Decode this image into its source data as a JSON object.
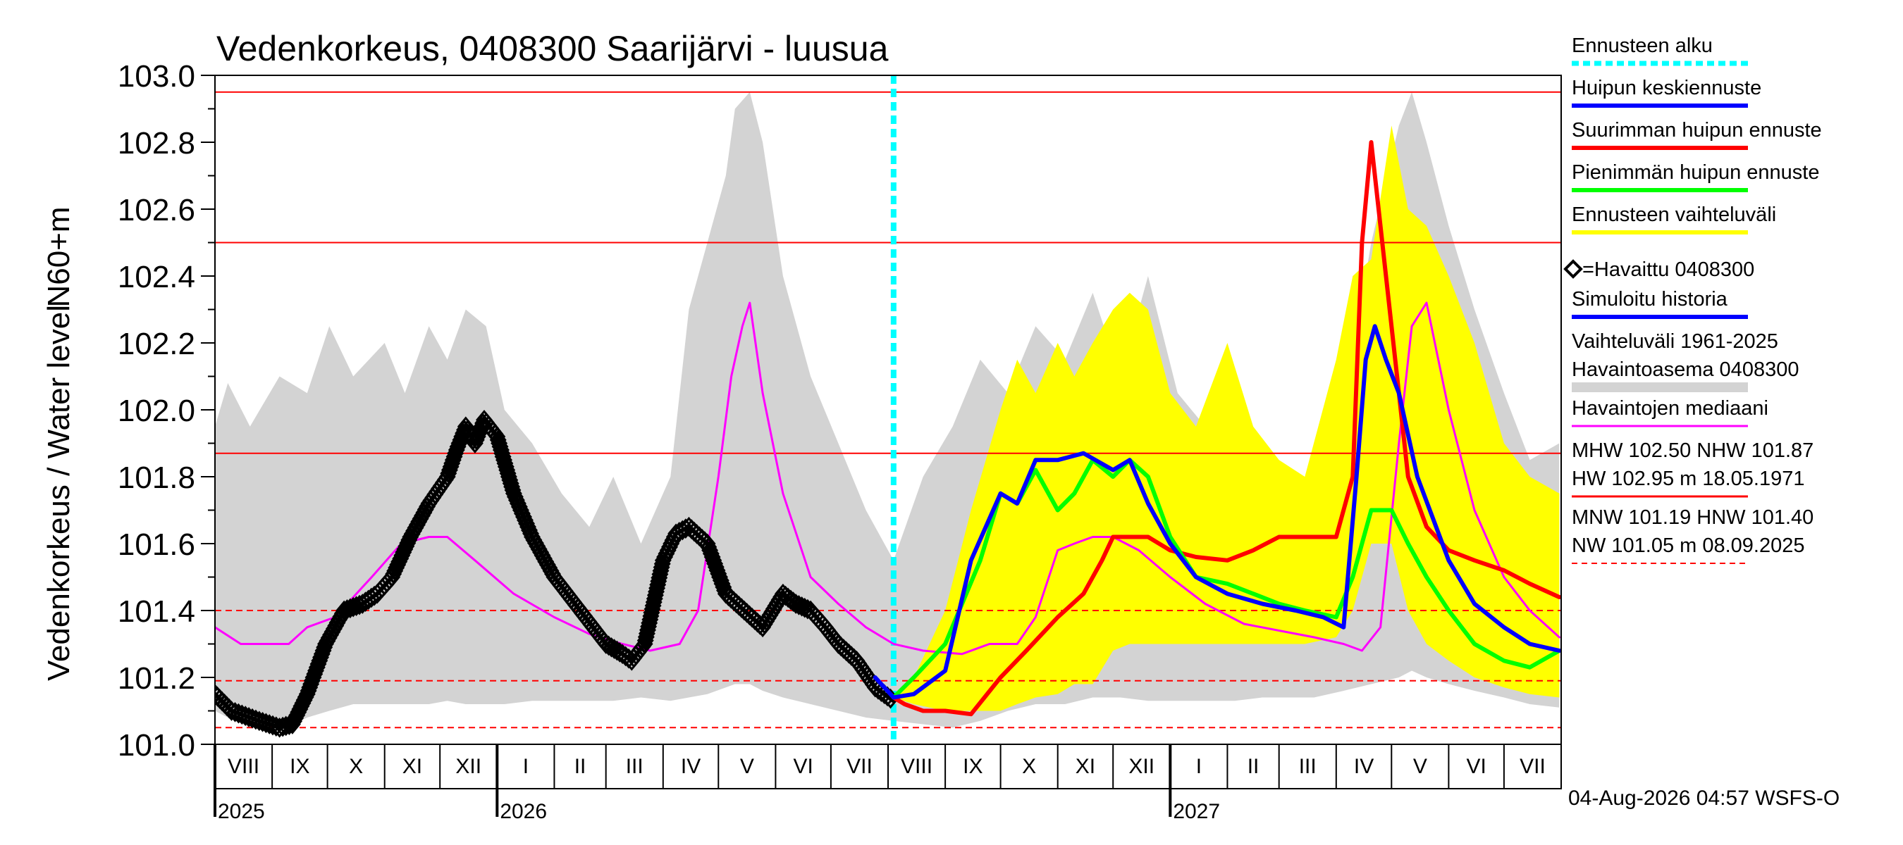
{
  "chart_data": {
    "type": "line",
    "title": "Vedenkorkeus, 0408300 Saarijärvi - luusua",
    "ylabel_top": "N60+m",
    "ylabel": "Vedenkorkeus / Water level",
    "ylim": [
      101.0,
      103.0
    ],
    "yticks": [
      "101.0",
      "101.2",
      "101.4",
      "101.6",
      "101.8",
      "102.0",
      "102.2",
      "102.4",
      "102.6",
      "102.8",
      "103.0"
    ],
    "x_range": [
      "2025-08-01",
      "2027-07-31"
    ],
    "months": [
      {
        "label": "VIII",
        "start": "2025-08-01"
      },
      {
        "label": "IX",
        "start": "2025-09-01"
      },
      {
        "label": "X",
        "start": "2025-10-01"
      },
      {
        "label": "XI",
        "start": "2025-11-01"
      },
      {
        "label": "XII",
        "start": "2025-12-01"
      },
      {
        "label": "I",
        "start": "2026-01-01"
      },
      {
        "label": "II",
        "start": "2026-02-01"
      },
      {
        "label": "III",
        "start": "2026-03-01"
      },
      {
        "label": "IV",
        "start": "2026-04-01"
      },
      {
        "label": "V",
        "start": "2026-05-01"
      },
      {
        "label": "VI",
        "start": "2026-06-01"
      },
      {
        "label": "VII",
        "start": "2026-07-01"
      },
      {
        "label": "VIII",
        "start": "2026-08-01"
      },
      {
        "label": "IX",
        "start": "2026-09-01"
      },
      {
        "label": "X",
        "start": "2026-10-01"
      },
      {
        "label": "XI",
        "start": "2026-11-01"
      },
      {
        "label": "XII",
        "start": "2026-12-01"
      },
      {
        "label": "I",
        "start": "2027-01-01"
      },
      {
        "label": "II",
        "start": "2027-02-01"
      },
      {
        "label": "III",
        "start": "2027-03-01"
      },
      {
        "label": "IV",
        "start": "2027-04-01"
      },
      {
        "label": "V",
        "start": "2027-05-01"
      },
      {
        "label": "VI",
        "start": "2027-06-01"
      },
      {
        "label": "VII",
        "start": "2027-07-01"
      }
    ],
    "years": [
      {
        "label": "2025",
        "start": "2025-08-01"
      },
      {
        "label": "2026",
        "start": "2026-01-01"
      },
      {
        "label": "2027",
        "start": "2027-01-01"
      }
    ],
    "forecast_start": "2026-08-04",
    "reference_lines": [
      {
        "name": "HW",
        "value": 102.95,
        "style": "solid"
      },
      {
        "name": "MHW",
        "value": 102.5,
        "style": "solid"
      },
      {
        "name": "NHW",
        "value": 101.87,
        "style": "solid"
      },
      {
        "name": "HNW",
        "value": 101.4,
        "style": "dashed"
      },
      {
        "name": "MNW",
        "value": 101.19,
        "style": "dashed"
      },
      {
        "name": "NW",
        "value": 101.05,
        "style": "dashed"
      }
    ],
    "series": [
      {
        "name": "Vaihteluväli 1961-2025 Havaintoasema 0408300",
        "type": "band",
        "color": "#d3d3d3",
        "x": [
          "2025-08-01",
          "2025-08-08",
          "2025-08-20",
          "2025-09-05",
          "2025-09-20",
          "2025-10-02",
          "2025-10-15",
          "2025-11-01",
          "2025-11-12",
          "2025-11-25",
          "2025-12-05",
          "2025-12-15",
          "2025-12-26",
          "2026-01-05",
          "2026-01-20",
          "2026-02-05",
          "2026-02-20",
          "2026-03-05",
          "2026-03-20",
          "2026-04-05",
          "2026-04-15",
          "2026-04-25",
          "2026-05-05",
          "2026-05-10",
          "2026-05-18",
          "2026-05-25",
          "2026-06-05",
          "2026-06-20",
          "2026-07-05",
          "2026-07-20",
          "2026-08-04",
          "2026-08-20",
          "2026-09-05",
          "2026-09-20",
          "2026-10-05",
          "2026-10-20",
          "2026-11-05",
          "2026-11-20",
          "2026-12-05",
          "2026-12-20",
          "2027-01-05",
          "2027-01-20",
          "2027-02-05",
          "2027-02-20",
          "2027-03-05",
          "2027-03-20",
          "2027-04-05",
          "2027-04-20",
          "2027-05-05",
          "2027-05-12",
          "2027-05-20",
          "2027-06-01",
          "2027-06-15",
          "2027-07-01",
          "2027-07-15",
          "2027-07-31"
        ],
        "upper": [
          101.95,
          102.08,
          101.95,
          102.1,
          102.05,
          102.25,
          102.1,
          102.2,
          102.05,
          102.25,
          102.15,
          102.3,
          102.25,
          102.0,
          101.9,
          101.75,
          101.65,
          101.8,
          101.6,
          101.8,
          102.3,
          102.5,
          102.7,
          102.9,
          102.95,
          102.8,
          102.4,
          102.1,
          101.9,
          101.7,
          101.55,
          101.8,
          101.95,
          102.15,
          102.05,
          102.25,
          102.15,
          102.35,
          102.1,
          102.4,
          102.05,
          101.95,
          101.8,
          101.75,
          101.8,
          101.75,
          102.0,
          102.5,
          102.85,
          102.95,
          102.8,
          102.55,
          102.3,
          102.05,
          101.85,
          101.9
        ],
        "lower": [
          101.1,
          101.08,
          101.05,
          101.04,
          101.08,
          101.1,
          101.12,
          101.12,
          101.12,
          101.12,
          101.13,
          101.12,
          101.12,
          101.12,
          101.13,
          101.13,
          101.13,
          101.13,
          101.14,
          101.13,
          101.14,
          101.15,
          101.17,
          101.18,
          101.18,
          101.16,
          101.14,
          101.12,
          101.1,
          101.08,
          101.07,
          101.06,
          101.05,
          101.07,
          101.1,
          101.12,
          101.12,
          101.14,
          101.14,
          101.13,
          101.13,
          101.13,
          101.13,
          101.14,
          101.14,
          101.14,
          101.16,
          101.18,
          101.2,
          101.22,
          101.2,
          101.18,
          101.16,
          101.14,
          101.12,
          101.11
        ]
      },
      {
        "name": "Ennusteen vaihteluväli",
        "type": "band",
        "color": "#ffff00",
        "x": [
          "2026-08-04",
          "2026-08-15",
          "2026-09-01",
          "2026-09-15",
          "2026-10-01",
          "2026-10-10",
          "2026-10-20",
          "2026-11-01",
          "2026-11-10",
          "2026-11-20",
          "2026-12-01",
          "2026-12-10",
          "2026-12-20",
          "2027-01-01",
          "2027-01-15",
          "2027-02-01",
          "2027-02-15",
          "2027-03-01",
          "2027-03-15",
          "2027-04-01",
          "2027-04-10",
          "2027-04-20",
          "2027-05-01",
          "2027-05-10",
          "2027-05-20",
          "2027-06-01",
          "2027-06-15",
          "2027-07-01",
          "2027-07-15",
          "2027-07-31"
        ],
        "upper": [
          101.14,
          101.2,
          101.4,
          101.7,
          102.0,
          102.15,
          102.05,
          102.2,
          102.1,
          102.2,
          102.3,
          102.35,
          102.3,
          102.05,
          101.95,
          102.2,
          101.95,
          101.85,
          101.8,
          102.15,
          102.4,
          102.45,
          102.85,
          102.6,
          102.55,
          102.4,
          102.2,
          101.9,
          101.8,
          101.75
        ],
        "lower": [
          101.14,
          101.12,
          101.1,
          101.1,
          101.1,
          101.12,
          101.14,
          101.15,
          101.18,
          101.18,
          101.28,
          101.3,
          101.3,
          101.3,
          101.3,
          101.3,
          101.3,
          101.3,
          101.3,
          101.32,
          101.4,
          101.6,
          101.6,
          101.4,
          101.3,
          101.25,
          101.2,
          101.17,
          101.15,
          101.14
        ]
      },
      {
        "name": "Havaintojen mediaani",
        "color": "#ff00ff",
        "x": [
          "2025-08-01",
          "2025-08-15",
          "2025-09-10",
          "2025-09-20",
          "2025-10-05",
          "2025-10-25",
          "2025-11-10",
          "2025-11-25",
          "2025-12-05",
          "2025-12-20",
          "2026-01-10",
          "2026-02-01",
          "2026-02-20",
          "2026-03-10",
          "2026-03-25",
          "2026-04-10",
          "2026-04-20",
          "2026-05-01",
          "2026-05-08",
          "2026-05-14",
          "2026-05-18",
          "2026-05-25",
          "2026-06-05",
          "2026-06-20",
          "2026-07-05",
          "2026-07-20",
          "2026-08-04",
          "2026-08-20",
          "2026-09-10",
          "2026-09-25",
          "2026-10-10",
          "2026-10-20",
          "2026-11-01",
          "2026-11-10",
          "2026-11-20",
          "2026-12-01",
          "2026-12-15",
          "2027-01-01",
          "2027-01-20",
          "2027-02-10",
          "2027-03-01",
          "2027-03-20",
          "2027-04-05",
          "2027-04-15",
          "2027-04-25",
          "2027-05-05",
          "2027-05-12",
          "2027-05-20",
          "2027-06-01",
          "2027-06-15",
          "2027-07-01",
          "2027-07-15",
          "2027-07-31"
        ],
        "y": [
          101.35,
          101.3,
          101.3,
          101.35,
          101.38,
          101.5,
          101.6,
          101.62,
          101.62,
          101.55,
          101.45,
          101.38,
          101.33,
          101.3,
          101.28,
          101.3,
          101.4,
          101.8,
          102.1,
          102.25,
          102.32,
          102.05,
          101.75,
          101.5,
          101.42,
          101.35,
          101.3,
          101.28,
          101.27,
          101.3,
          101.3,
          101.38,
          101.58,
          101.6,
          101.62,
          101.62,
          101.58,
          101.5,
          101.42,
          101.36,
          101.34,
          101.32,
          101.3,
          101.28,
          101.35,
          101.9,
          102.25,
          102.32,
          102.0,
          101.7,
          101.5,
          101.4,
          101.32
        ]
      },
      {
        "name": "Havaittu 0408300",
        "color": "#000000",
        "x": [
          "2025-08-01",
          "2025-08-10",
          "2025-08-25",
          "2025-09-05",
          "2025-09-12",
          "2025-09-20",
          "2025-09-30",
          "2025-10-10",
          "2025-10-20",
          "2025-10-28",
          "2025-11-05",
          "2025-11-15",
          "2025-11-25",
          "2025-12-05",
          "2025-12-10",
          "2025-12-15",
          "2025-12-20",
          "2025-12-25",
          "2026-01-01",
          "2026-01-10",
          "2026-01-20",
          "2026-02-01",
          "2026-02-15",
          "2026-03-01",
          "2026-03-10",
          "2026-03-15",
          "2026-03-22",
          "2026-04-01",
          "2026-04-08",
          "2026-04-15",
          "2026-04-25",
          "2026-05-05",
          "2026-05-15",
          "2026-05-25",
          "2026-06-05",
          "2026-06-12",
          "2026-06-20",
          "2026-06-28",
          "2026-07-05",
          "2026-07-15",
          "2026-07-25",
          "2026-08-04"
        ],
        "y": [
          101.15,
          101.1,
          101.07,
          101.05,
          101.06,
          101.15,
          101.3,
          101.4,
          101.42,
          101.45,
          101.5,
          101.62,
          101.72,
          101.8,
          101.88,
          101.95,
          101.9,
          101.97,
          101.92,
          101.75,
          101.62,
          101.5,
          101.4,
          101.3,
          101.27,
          101.25,
          101.3,
          101.55,
          101.63,
          101.65,
          101.6,
          101.45,
          101.4,
          101.35,
          101.45,
          101.42,
          101.4,
          101.35,
          101.3,
          101.25,
          101.17,
          101.13
        ]
      },
      {
        "name": "Suurimman huipun ennuste",
        "color": "#ff0000",
        "x": [
          "2026-08-04",
          "2026-08-10",
          "2026-08-20",
          "2026-09-01",
          "2026-09-15",
          "2026-10-01",
          "2026-10-15",
          "2026-11-01",
          "2026-11-15",
          "2026-11-25",
          "2026-12-01",
          "2026-12-10",
          "2026-12-20",
          "2027-01-01",
          "2027-01-15",
          "2027-02-01",
          "2027-02-15",
          "2027-03-01",
          "2027-03-15",
          "2027-04-01",
          "2027-04-10",
          "2027-04-15",
          "2027-04-20",
          "2027-04-25",
          "2027-05-01",
          "2027-05-05",
          "2027-05-10",
          "2027-05-20",
          "2027-06-01",
          "2027-06-15",
          "2027-07-01",
          "2027-07-15",
          "2027-07-31"
        ],
        "y": [
          101.14,
          101.12,
          101.1,
          101.1,
          101.09,
          101.2,
          101.28,
          101.38,
          101.45,
          101.55,
          101.62,
          101.62,
          101.62,
          101.58,
          101.56,
          101.55,
          101.58,
          101.62,
          101.62,
          101.62,
          101.8,
          102.5,
          102.8,
          102.55,
          102.25,
          102.05,
          101.8,
          101.65,
          101.58,
          101.55,
          101.52,
          101.48,
          101.44
        ]
      },
      {
        "name": "Pienimmän huipun ennuste",
        "color": "#00ff00",
        "x": [
          "2026-08-04",
          "2026-08-15",
          "2026-09-01",
          "2026-09-20",
          "2026-10-01",
          "2026-10-10",
          "2026-10-20",
          "2026-11-01",
          "2026-11-10",
          "2026-11-20",
          "2026-12-01",
          "2026-12-10",
          "2026-12-20",
          "2027-01-01",
          "2027-01-15",
          "2027-02-01",
          "2027-02-15",
          "2027-03-01",
          "2027-03-15",
          "2027-04-01",
          "2027-04-10",
          "2027-04-20",
          "2027-05-01",
          "2027-05-10",
          "2027-05-20",
          "2027-06-01",
          "2027-06-15",
          "2027-07-01",
          "2027-07-15",
          "2027-07-31"
        ],
        "y": [
          101.14,
          101.2,
          101.3,
          101.55,
          101.75,
          101.72,
          101.82,
          101.7,
          101.75,
          101.85,
          101.8,
          101.85,
          101.8,
          101.62,
          101.5,
          101.48,
          101.45,
          101.42,
          101.4,
          101.38,
          101.5,
          101.7,
          101.7,
          101.6,
          101.5,
          101.4,
          101.3,
          101.25,
          101.23,
          101.28
        ]
      },
      {
        "name": "Huipun keskiennuste",
        "color": "#0000ff",
        "x": [
          "2026-07-25",
          "2026-08-04",
          "2026-08-15",
          "2026-09-01",
          "2026-09-15",
          "2026-10-01",
          "2026-10-10",
          "2026-10-20",
          "2026-11-01",
          "2026-11-15",
          "2026-12-01",
          "2026-12-10",
          "2026-12-20",
          "2027-01-01",
          "2027-01-15",
          "2027-02-01",
          "2027-02-20",
          "2027-03-10",
          "2027-03-25",
          "2027-04-05",
          "2027-04-12",
          "2027-04-17",
          "2027-04-22",
          "2027-04-28",
          "2027-05-05",
          "2027-05-15",
          "2027-06-01",
          "2027-06-15",
          "2027-07-01",
          "2027-07-15",
          "2027-07-31"
        ],
        "y": [
          101.2,
          101.14,
          101.15,
          101.22,
          101.55,
          101.75,
          101.72,
          101.85,
          101.85,
          101.87,
          101.82,
          101.85,
          101.72,
          101.6,
          101.5,
          101.45,
          101.42,
          101.4,
          101.38,
          101.35,
          101.8,
          102.15,
          102.25,
          102.15,
          102.05,
          101.8,
          101.55,
          101.42,
          101.35,
          101.3,
          101.28
        ]
      },
      {
        "name": "Simuloitu historia",
        "color": "#0000ff",
        "x": [
          "2026-07-25",
          "2026-08-04"
        ],
        "y": [
          101.2,
          101.14
        ]
      }
    ],
    "legend": [
      {
        "label": "Ennusteen alku",
        "color": "#00ffff",
        "style": "dotted"
      },
      {
        "label": "Huipun keskiennuste",
        "color": "#0000ff",
        "style": "solid"
      },
      {
        "label": "Suurimman huipun ennuste",
        "color": "#ff0000",
        "style": "solid"
      },
      {
        "label": "Pienimmän huipun ennuste",
        "color": "#00ff00",
        "style": "solid"
      },
      {
        "label": "Ennusteen vaihteluväli",
        "color": "#ffff00",
        "style": "solid"
      },
      {
        "label": "=Havaittu 0408300",
        "color": "#000000",
        "style": "marker"
      },
      {
        "label": "Simuloitu historia",
        "color": "#0000ff",
        "style": "solid"
      },
      {
        "label": "Vaihteluväli 1961-2025",
        "label2": "Havaintoasema 0408300",
        "color": "#d3d3d3",
        "style": "band"
      },
      {
        "label": "Havaintojen mediaani",
        "color": "#ff00ff",
        "style": "thin"
      },
      {
        "label": "MHW 102.50 NHW 101.87",
        "label2": "HW 102.95 m 18.05.1971",
        "color": "#ff0000",
        "style": "thin"
      },
      {
        "label": "MNW 101.19 HNW 101.40",
        "label2": "NW 101.05 m 08.09.2025",
        "color": "#ff0000",
        "style": "dashed"
      }
    ]
  },
  "footer": {
    "timestamp": "04-Aug-2026 04:57 WSFS-O"
  }
}
